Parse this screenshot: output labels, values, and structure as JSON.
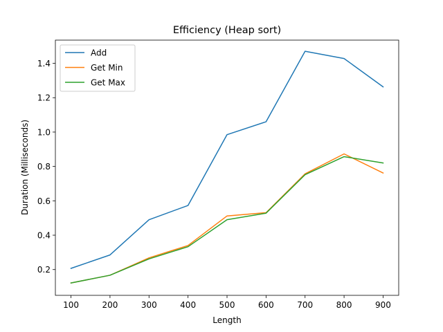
{
  "chart_data": {
    "type": "line",
    "title": "Efficiency (Heap sort)",
    "xlabel": "Length",
    "ylabel": "Duration (Milliseconds)",
    "x": [
      100,
      200,
      300,
      400,
      500,
      600,
      700,
      800,
      900
    ],
    "xticks": [
      100,
      200,
      300,
      400,
      500,
      600,
      700,
      800,
      900
    ],
    "yticks": [
      0.2,
      0.4,
      0.6,
      0.8,
      1.0,
      1.2,
      1.4
    ],
    "ytick_labels": [
      "0.2",
      "0.4",
      "0.6",
      "0.8",
      "1.0",
      "1.2",
      "1.4"
    ],
    "xlim": [
      60,
      940
    ],
    "ylim": [
      0.05,
      1.535
    ],
    "grid": false,
    "legend_position": "top-left",
    "series": [
      {
        "name": "Add",
        "color": "#1f77b4",
        "values": [
          0.207,
          0.285,
          0.49,
          0.573,
          0.985,
          1.06,
          1.47,
          1.428,
          1.263
        ]
      },
      {
        "name": "Get Min",
        "color": "#ff7f0e",
        "values": [
          0.122,
          0.167,
          0.268,
          0.34,
          0.512,
          0.531,
          0.757,
          0.873,
          0.762
        ]
      },
      {
        "name": "Get Max",
        "color": "#2ca02c",
        "values": [
          0.122,
          0.167,
          0.262,
          0.333,
          0.49,
          0.528,
          0.752,
          0.857,
          0.82
        ]
      }
    ]
  }
}
